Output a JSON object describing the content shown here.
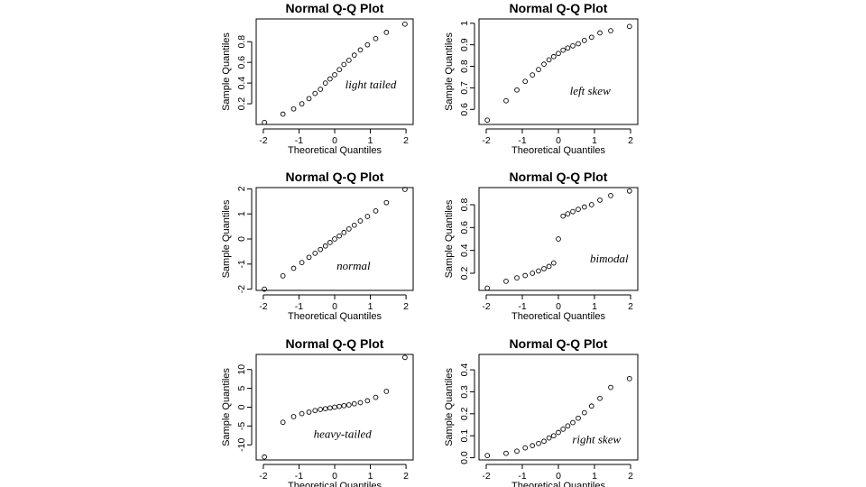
{
  "chart_data": [
    {
      "type": "scatter",
      "title": "Normal Q-Q Plot",
      "xlabel": "Theoretical Quantiles",
      "ylabel": "Sample Quantiles",
      "annotation": "light tailed",
      "xlim": [
        -2.2,
        2.2
      ],
      "ylim": [
        0.0,
        1.02
      ],
      "xticks": [
        -2,
        -1,
        0,
        1,
        2
      ],
      "yticks": [
        0.2,
        0.4,
        0.6,
        0.8
      ],
      "x": [
        -1.97,
        -1.45,
        -1.15,
        -0.92,
        -0.72,
        -0.55,
        -0.4,
        -0.26,
        -0.13,
        0.0,
        0.13,
        0.26,
        0.4,
        0.55,
        0.72,
        0.92,
        1.15,
        1.45,
        1.97
      ],
      "y": [
        0.02,
        0.1,
        0.15,
        0.2,
        0.25,
        0.3,
        0.34,
        0.4,
        0.44,
        0.48,
        0.53,
        0.58,
        0.62,
        0.67,
        0.72,
        0.77,
        0.83,
        0.89,
        0.97
      ]
    },
    {
      "type": "scatter",
      "title": "Normal Q-Q Plot",
      "xlabel": "Theoretical Quantiles",
      "ylabel": "Sample Quantiles",
      "annotation": "left skew",
      "xlim": [
        -2.2,
        2.2
      ],
      "ylim": [
        0.53,
        1.02
      ],
      "xticks": [
        -2,
        -1,
        0,
        1,
        2
      ],
      "yticks": [
        0.6,
        0.7,
        0.8,
        0.9,
        1.0
      ],
      "x": [
        -1.97,
        -1.45,
        -1.15,
        -0.92,
        -0.72,
        -0.55,
        -0.4,
        -0.26,
        -0.13,
        0.0,
        0.13,
        0.26,
        0.4,
        0.55,
        0.72,
        0.92,
        1.15,
        1.45,
        1.97
      ],
      "y": [
        0.55,
        0.64,
        0.69,
        0.73,
        0.76,
        0.785,
        0.81,
        0.83,
        0.845,
        0.86,
        0.875,
        0.885,
        0.895,
        0.905,
        0.92,
        0.935,
        0.955,
        0.965,
        0.985
      ]
    },
    {
      "type": "scatter",
      "title": "Normal Q-Q Plot",
      "xlabel": "Theoretical Quantiles",
      "ylabel": "Sample Quantiles",
      "annotation": "normal",
      "xlim": [
        -2.2,
        2.2
      ],
      "ylim": [
        -2.05,
        2.05
      ],
      "xticks": [
        -2,
        -1,
        0,
        1,
        2
      ],
      "yticks": [
        -2,
        -1,
        0,
        1,
        2
      ],
      "x": [
        -1.97,
        -1.45,
        -1.15,
        -0.92,
        -0.72,
        -0.55,
        -0.4,
        -0.26,
        -0.13,
        0.0,
        0.13,
        0.26,
        0.4,
        0.55,
        0.72,
        0.92,
        1.15,
        1.45,
        1.97
      ],
      "y": [
        -2.0,
        -1.47,
        -1.17,
        -0.94,
        -0.73,
        -0.57,
        -0.42,
        -0.28,
        -0.14,
        0.0,
        0.12,
        0.26,
        0.4,
        0.55,
        0.72,
        0.9,
        1.12,
        1.45,
        1.98
      ]
    },
    {
      "type": "scatter",
      "title": "Normal Q-Q Plot",
      "xlabel": "Theoretical Quantiles",
      "ylabel": "Sample Quantiles",
      "annotation": "bimodal",
      "xlim": [
        -2.2,
        2.2
      ],
      "ylim": [
        0.05,
        0.95
      ],
      "xticks": [
        -2,
        -1,
        0,
        1,
        2
      ],
      "yticks": [
        0.2,
        0.4,
        0.6,
        0.8
      ],
      "x": [
        -1.97,
        -1.45,
        -1.15,
        -0.92,
        -0.72,
        -0.55,
        -0.4,
        -0.26,
        -0.13,
        0.0,
        0.13,
        0.26,
        0.4,
        0.55,
        0.72,
        0.92,
        1.15,
        1.45,
        1.97
      ],
      "y": [
        0.07,
        0.13,
        0.16,
        0.18,
        0.2,
        0.22,
        0.24,
        0.26,
        0.29,
        0.5,
        0.7,
        0.72,
        0.74,
        0.76,
        0.78,
        0.8,
        0.84,
        0.88,
        0.92
      ]
    },
    {
      "type": "scatter",
      "title": "Normal Q-Q Plot",
      "xlabel": "Theoretical Quantiles",
      "ylabel": "Sample Quantiles",
      "annotation": "heavy-tailed",
      "xlim": [
        -2.2,
        2.2
      ],
      "ylim": [
        -14,
        14
      ],
      "xticks": [
        -2,
        -1,
        0,
        1,
        2
      ],
      "yticks": [
        -10,
        -5,
        0,
        5,
        10
      ],
      "x": [
        -1.97,
        -1.45,
        -1.15,
        -0.92,
        -0.72,
        -0.55,
        -0.4,
        -0.26,
        -0.13,
        0.0,
        0.13,
        0.26,
        0.4,
        0.55,
        0.72,
        0.92,
        1.15,
        1.45,
        1.97
      ],
      "y": [
        -13.2,
        -4.0,
        -2.5,
        -1.7,
        -1.3,
        -0.9,
        -0.6,
        -0.4,
        -0.2,
        0.0,
        0.2,
        0.4,
        0.6,
        0.9,
        1.2,
        1.7,
        2.6,
        4.2,
        13.2
      ]
    },
    {
      "type": "scatter",
      "title": "Normal Q-Q Plot",
      "xlabel": "Theoretical Quantiles",
      "ylabel": "Sample Quantiles",
      "annotation": "right skew",
      "xlim": [
        -2.2,
        2.2
      ],
      "ylim": [
        -0.01,
        0.47
      ],
      "xticks": [
        -2,
        -1,
        0,
        1,
        2
      ],
      "yticks": [
        0.0,
        0.1,
        0.2,
        0.3,
        0.4
      ],
      "x": [
        -1.97,
        -1.45,
        -1.15,
        -0.92,
        -0.72,
        -0.55,
        -0.4,
        -0.26,
        -0.13,
        0.0,
        0.13,
        0.26,
        0.4,
        0.55,
        0.72,
        0.92,
        1.15,
        1.45,
        1.97
      ],
      "y": [
        0.01,
        0.02,
        0.03,
        0.045,
        0.055,
        0.065,
        0.075,
        0.09,
        0.1,
        0.115,
        0.13,
        0.145,
        0.16,
        0.18,
        0.205,
        0.235,
        0.27,
        0.32,
        0.36
      ]
    }
  ]
}
